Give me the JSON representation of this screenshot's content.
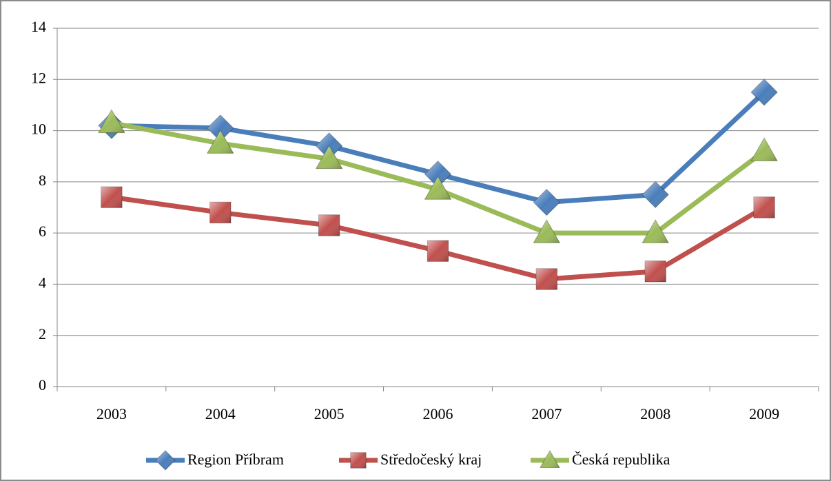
{
  "chart_data": {
    "type": "line",
    "categories": [
      "2003",
      "2004",
      "2005",
      "2006",
      "2007",
      "2008",
      "2009"
    ],
    "series": [
      {
        "name": "Region Příbram",
        "color": "#4a7ebb",
        "marker": "diamond",
        "values": [
          10.2,
          10.1,
          9.4,
          8.3,
          7.2,
          7.5,
          11.5
        ]
      },
      {
        "name": "Středočeský kraj",
        "color": "#c0504d",
        "marker": "square",
        "values": [
          7.4,
          6.8,
          6.3,
          5.3,
          4.2,
          4.5,
          7.0
        ]
      },
      {
        "name": "Česká republika",
        "color": "#9bbb59",
        "marker": "triangle",
        "values": [
          10.3,
          9.5,
          8.9,
          7.7,
          6.0,
          6.0,
          9.2
        ]
      }
    ],
    "ylim": [
      0,
      14
    ],
    "yticks": [
      0,
      2,
      4,
      6,
      8,
      10,
      12,
      14
    ],
    "grid": true,
    "legend": "bottom"
  }
}
